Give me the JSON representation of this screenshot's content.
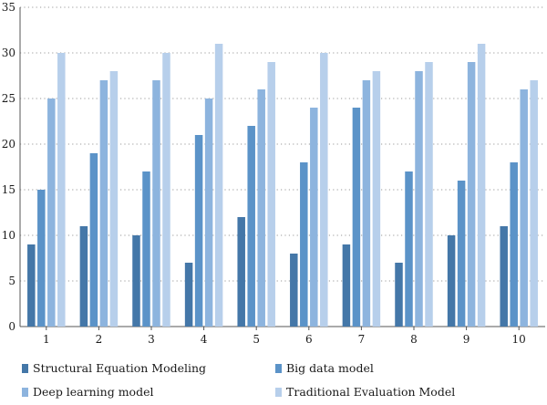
{
  "chart_data": {
    "type": "bar",
    "title": "",
    "xlabel": "",
    "ylabel": "",
    "ylim": [
      0,
      35
    ],
    "yticks": [
      0,
      5,
      10,
      15,
      20,
      25,
      30,
      35
    ],
    "grid": "horizontal dotted",
    "legend_position": "bottom",
    "categories": [
      "1",
      "2",
      "3",
      "4",
      "5",
      "6",
      "7",
      "8",
      "9",
      "10"
    ],
    "series": [
      {
        "name": "Structural Equation Modeling",
        "color": "#4477a8",
        "values": [
          9,
          11,
          10,
          7,
          12,
          8,
          9,
          7,
          10,
          11
        ]
      },
      {
        "name": "Big data model",
        "color": "#5b93c8",
        "values": [
          15,
          19,
          17,
          21,
          22,
          18,
          24,
          17,
          16,
          18
        ]
      },
      {
        "name": "Deep learning model",
        "color": "#8db4de",
        "values": [
          25,
          27,
          27,
          25,
          26,
          24,
          27,
          28,
          29,
          26
        ]
      },
      {
        "name": "Traditional Evaluation Model",
        "color": "#b7cfeb",
        "values": [
          30,
          28,
          30,
          31,
          29,
          30,
          28,
          29,
          31,
          27
        ]
      }
    ]
  }
}
